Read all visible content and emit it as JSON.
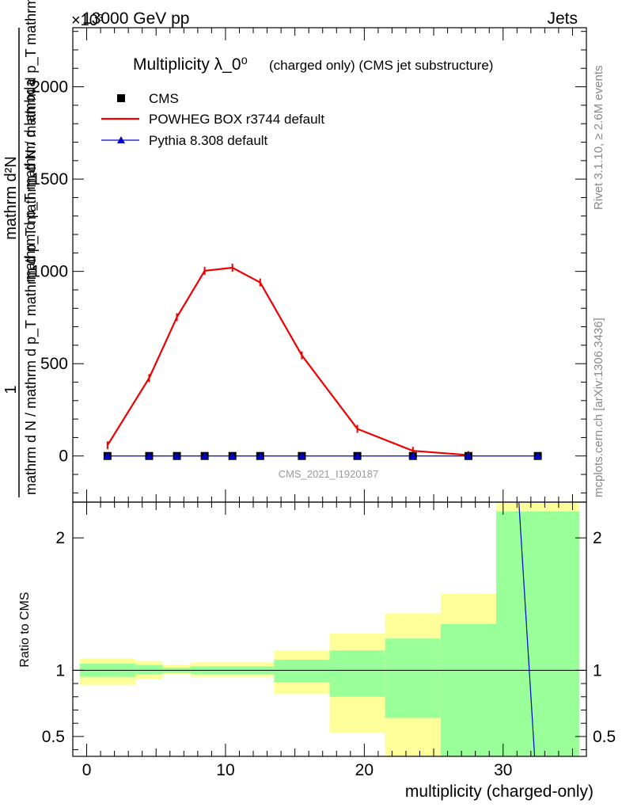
{
  "header": {
    "energy": "13000 GeV pp",
    "process": "Jets",
    "multiplier": "×10³"
  },
  "side_text": {
    "rivet": "Rivet 3.1.10, ≥ 2.6M events",
    "mcplots": "mcplots.cern.ch [arXiv:1306.3436]"
  },
  "chart_data": [
    {
      "type": "line",
      "title": "Multiplicity λ_0⁰",
      "subtitle": "(charged only) (CMS jet substructure)",
      "analysis": "CMS_2021_I1920187",
      "ylabel_numerator": "1",
      "ylabel_denominator": "mathrm d N / mathrm d p_T mathrm d p_T mathrm d N / mathrm d p_T mathrm d lambda",
      "ylabel_main": "mathrm d²N",
      "ylabel_sub": "mathrm d p_T mathrm d lambda",
      "xlim": [
        -1,
        36
      ],
      "ylim": [
        -250,
        2320
      ],
      "yticks": [
        0,
        500,
        1000,
        1500,
        2000
      ],
      "ytick_labels": [
        "0",
        "500",
        "1000",
        "1500",
        "2000"
      ],
      "legend": [
        {
          "label": "CMS",
          "color": "#000000",
          "marker": "square"
        },
        {
          "label": "POWHEG BOX r3744 default",
          "color": "#ee0000",
          "marker": "line"
        },
        {
          "label": "Pythia 8.308 default",
          "color": "#0000cc",
          "marker": "triangle"
        }
      ],
      "series": [
        {
          "name": "CMS",
          "x": [
            1.5,
            4.5,
            6.5,
            8.5,
            10.5,
            12.5,
            15.5,
            19.5,
            23.5,
            27.5,
            32.5
          ],
          "y": [
            0,
            0,
            0,
            0,
            0,
            0,
            0,
            0,
            0,
            0,
            0
          ]
        },
        {
          "name": "POWHEG BOX r3744 default",
          "x": [
            1.5,
            4.5,
            6.5,
            8.5,
            10.5,
            12.5,
            15.5,
            19.5,
            23.5,
            27.5
          ],
          "y": [
            58,
            422,
            752,
            1003,
            1020,
            940,
            545,
            147,
            28,
            5
          ]
        },
        {
          "name": "Pythia 8.308 default",
          "x": [
            1.5,
            4.5,
            6.5,
            8.5,
            10.5,
            12.5,
            15.5,
            19.5,
            23.5,
            27.5,
            32.5
          ],
          "y": [
            0,
            0,
            0,
            0,
            0,
            0,
            0,
            0,
            0,
            0,
            0
          ]
        }
      ]
    },
    {
      "type": "area",
      "ylabel": "Ratio to CMS",
      "xlabel": "multiplicity (charged-only)",
      "xlim": [
        -1,
        36
      ],
      "ylim": [
        0.35,
        2.27
      ],
      "xticks": [
        0,
        10,
        20,
        30
      ],
      "xtick_labels": [
        "0",
        "10",
        "20",
        "30"
      ],
      "yticks": [
        0.5,
        1,
        2
      ],
      "ytick_labels": [
        "0.5",
        "1",
        "2"
      ],
      "bands": {
        "bin_edges": [
          -0.5,
          3.5,
          5.5,
          7.5,
          13.5,
          17.5,
          21.5,
          25.5,
          29.5,
          35.5
        ],
        "yellow_low": [
          0.89,
          0.93,
          0.97,
          0.95,
          0.82,
          0.53,
          0.3,
          0.3,
          0.3
        ],
        "yellow_high": [
          1.09,
          1.07,
          1.04,
          1.06,
          1.15,
          1.28,
          1.43,
          1.58,
          2.3
        ],
        "green_low": [
          0.95,
          0.97,
          0.98,
          0.97,
          0.91,
          0.8,
          0.64,
          0.3,
          0.3
        ],
        "green_high": [
          1.05,
          1.04,
          1.02,
          1.03,
          1.08,
          1.15,
          1.24,
          1.35,
          2.2
        ]
      },
      "pythia_ratio": {
        "x": [
          31.0,
          32.3
        ],
        "y": [
          2.5,
          0.3
        ]
      },
      "reference_line": 1
    }
  ]
}
